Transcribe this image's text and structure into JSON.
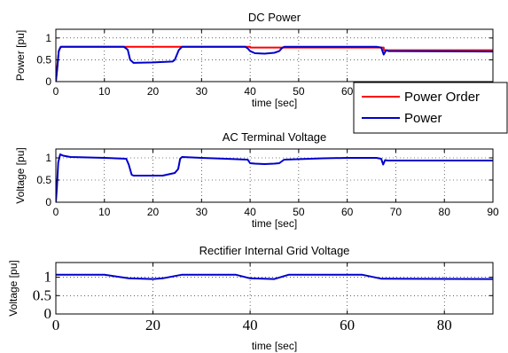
{
  "chart_data": [
    {
      "type": "line",
      "title": "DC Power",
      "xlabel": "time [sec]",
      "ylabel": "Power [pu]",
      "xlim": [
        0,
        90
      ],
      "ylim": [
        0,
        1.2
      ],
      "xticks": [
        0,
        10,
        20,
        30,
        40,
        50,
        60
      ],
      "xtick_labels": [
        "0",
        "10",
        "20",
        "30",
        "40",
        "50",
        "60"
      ],
      "yticks": [
        0,
        0.5,
        1
      ],
      "ytick_labels": [
        "0",
        "0.5",
        "1"
      ],
      "grid": true,
      "legend": "bottom-right",
      "series": [
        {
          "name": "Power Order",
          "color": "#ff0000",
          "x": [
            0,
            0.3,
            0.6,
            0.9,
            1.2,
            40,
            40.05,
            67.5,
            67.55,
            90
          ],
          "y": [
            0,
            0.35,
            0.7,
            0.78,
            0.8,
            0.8,
            0.78,
            0.78,
            0.72,
            0.72
          ]
        },
        {
          "name": "Power",
          "color": "#0000cc",
          "x": [
            0,
            0.3,
            0.6,
            1.0,
            1.5,
            14,
            14.8,
            15.3,
            16,
            20,
            24,
            24.5,
            25.3,
            26,
            39,
            39.5,
            40,
            41,
            43,
            45,
            46,
            46.5,
            47,
            66,
            67,
            67.5,
            68,
            68.5,
            90
          ],
          "y": [
            0,
            0.3,
            0.7,
            0.8,
            0.8,
            0.8,
            0.73,
            0.5,
            0.43,
            0.44,
            0.46,
            0.5,
            0.72,
            0.8,
            0.8,
            0.76,
            0.7,
            0.65,
            0.64,
            0.66,
            0.7,
            0.76,
            0.8,
            0.8,
            0.78,
            0.62,
            0.72,
            0.7,
            0.69
          ]
        }
      ]
    },
    {
      "type": "line",
      "title": "AC Terminal Voltage",
      "xlabel": "time [sec]",
      "ylabel": "Voltage [pu]",
      "xlim": [
        0,
        90
      ],
      "ylim": [
        0,
        1.2
      ],
      "xticks": [
        0,
        10,
        20,
        30,
        40,
        50,
        60,
        70,
        80,
        90
      ],
      "xtick_labels": [
        "0",
        "10",
        "20",
        "30",
        "40",
        "50",
        "60",
        "70",
        "80",
        "90"
      ],
      "yticks": [
        0,
        0.5,
        1
      ],
      "ytick_labels": [
        "0",
        "0.5",
        "1"
      ],
      "grid": true,
      "series": [
        {
          "color": "#0000cc",
          "x": [
            0,
            0.2,
            0.5,
            0.9,
            1.5,
            3,
            10,
            14.5,
            15,
            15.6,
            16,
            22,
            24.5,
            25.2,
            25.6,
            26,
            30,
            35,
            39.5,
            40,
            41,
            43,
            45,
            46,
            47,
            55,
            60,
            66,
            67,
            67.4,
            67.8,
            68.3,
            90
          ],
          "y": [
            0,
            0.3,
            0.9,
            1.08,
            1.05,
            1.02,
            1.0,
            0.98,
            0.85,
            0.62,
            0.6,
            0.6,
            0.66,
            0.75,
            0.98,
            1.02,
            1.0,
            0.98,
            0.96,
            0.88,
            0.87,
            0.86,
            0.87,
            0.88,
            0.96,
            0.99,
            1.0,
            1.0,
            0.98,
            0.85,
            0.95,
            0.94,
            0.94
          ]
        }
      ]
    },
    {
      "type": "line",
      "title": "Rectifier Internal Grid Voltage",
      "xlabel": "time [sec]",
      "ylabel": "Voltage [pu]",
      "xlim": [
        0,
        90
      ],
      "ylim": [
        0,
        1.4
      ],
      "xticks": [
        0,
        20,
        40,
        60,
        80
      ],
      "xtick_labels": [
        "0",
        "20",
        "40",
        "60",
        "80"
      ],
      "yticks": [
        0,
        0.5,
        1
      ],
      "ytick_labels": [
        "0",
        "0.5",
        "1"
      ],
      "grid": true,
      "series": [
        {
          "color": "#0000cc",
          "x": [
            0,
            10,
            15,
            20,
            22,
            26,
            28,
            37,
            40,
            45,
            48,
            50,
            63,
            67,
            68,
            90
          ],
          "y": [
            1.07,
            1.07,
            0.97,
            0.95,
            0.97,
            1.07,
            1.07,
            1.07,
            0.97,
            0.95,
            1.07,
            1.07,
            1.07,
            0.96,
            0.96,
            0.95
          ]
        }
      ]
    }
  ]
}
